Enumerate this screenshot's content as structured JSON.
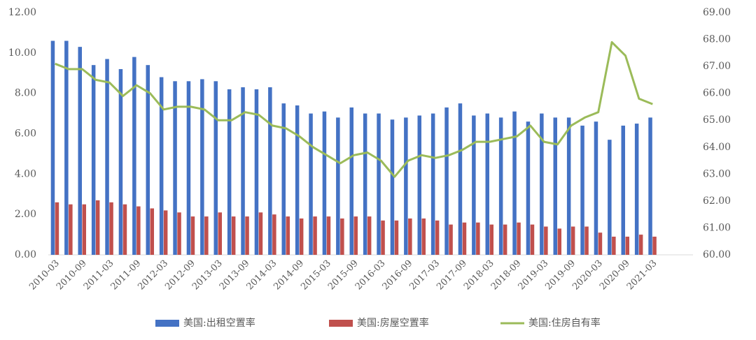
{
  "chart_data": {
    "type": "bar-line",
    "categories": [
      "2010-03",
      null,
      "2010-09",
      null,
      "2011-03",
      null,
      "2011-09",
      null,
      "2012-03",
      null,
      "2012-09",
      null,
      "2013-03",
      null,
      "2013-09",
      null,
      "2014-03",
      null,
      "2014-09",
      null,
      "2015-03",
      null,
      "2015-09",
      null,
      "2016-03",
      null,
      "2016-09",
      null,
      "2017-03",
      null,
      "2017-09",
      null,
      "2018-03",
      null,
      "2018-09",
      null,
      "2019-03",
      null,
      "2019-09",
      null,
      "2020-03",
      null,
      "2020-09",
      null,
      "2021-03"
    ],
    "series": [
      {
        "name": "美国:出租空置率",
        "type": "bar",
        "color": "#4472c4",
        "values": [
          10.6,
          10.6,
          10.3,
          9.4,
          9.7,
          9.2,
          9.8,
          9.4,
          8.8,
          8.6,
          8.6,
          8.7,
          8.6,
          8.2,
          8.3,
          8.2,
          8.3,
          7.5,
          7.4,
          7.0,
          7.1,
          6.8,
          7.3,
          7.0,
          7.0,
          6.7,
          6.8,
          6.9,
          7.0,
          7.3,
          7.5,
          6.9,
          7.0,
          6.8,
          7.1,
          6.6,
          7.0,
          6.8,
          6.8,
          6.4,
          6.6,
          5.7,
          6.4,
          6.5,
          6.8
        ]
      },
      {
        "name": "美国:房屋空置率",
        "type": "bar",
        "color": "#c0504d",
        "values": [
          2.6,
          2.5,
          2.5,
          2.7,
          2.6,
          2.5,
          2.4,
          2.3,
          2.2,
          2.1,
          1.9,
          1.9,
          2.1,
          1.9,
          1.9,
          2.1,
          2.0,
          1.9,
          1.8,
          1.9,
          1.9,
          1.8,
          1.9,
          1.9,
          1.7,
          1.7,
          1.8,
          1.8,
          1.7,
          1.5,
          1.6,
          1.6,
          1.5,
          1.5,
          1.6,
          1.5,
          1.4,
          1.3,
          1.4,
          1.4,
          1.1,
          0.9,
          0.9,
          1.0,
          0.9
        ]
      },
      {
        "name": "美国:住房自有率",
        "type": "line",
        "axis": "y2",
        "color": "#9bbb59",
        "values": [
          67.1,
          66.9,
          66.9,
          66.5,
          66.4,
          65.9,
          66.3,
          66.0,
          65.4,
          65.5,
          65.5,
          65.4,
          65.0,
          65.0,
          65.3,
          65.2,
          64.8,
          64.7,
          64.4,
          64.0,
          63.7,
          63.4,
          63.7,
          63.8,
          63.5,
          62.9,
          63.5,
          63.7,
          63.6,
          63.7,
          63.9,
          64.2,
          64.2,
          64.3,
          64.4,
          64.8,
          64.2,
          64.1,
          64.8,
          65.1,
          65.3,
          67.9,
          67.4,
          65.8,
          65.6
        ]
      }
    ],
    "ylim": [
      0,
      12
    ],
    "yticks": [
      {
        "value": 0,
        "label": "0.00"
      },
      {
        "value": 2,
        "label": "2.00"
      },
      {
        "value": 4,
        "label": "4.00"
      },
      {
        "value": 6,
        "label": "6.00"
      },
      {
        "value": 8,
        "label": "8.00"
      },
      {
        "value": 10,
        "label": "10.00"
      },
      {
        "value": 12,
        "label": "12.00"
      }
    ],
    "y2lim": [
      60,
      69
    ],
    "y2ticks": [
      {
        "value": 60,
        "label": "60.00"
      },
      {
        "value": 61,
        "label": "61.00"
      },
      {
        "value": 62,
        "label": "62.00"
      },
      {
        "value": 63,
        "label": "63.00"
      },
      {
        "value": 64,
        "label": "64.00"
      },
      {
        "value": 65,
        "label": "65.00"
      },
      {
        "value": 66,
        "label": "66.00"
      },
      {
        "value": 67,
        "label": "67.00"
      },
      {
        "value": 68,
        "label": "68.00"
      },
      {
        "value": 69,
        "label": "69.00"
      }
    ],
    "legend": "bottom",
    "grid": false
  }
}
